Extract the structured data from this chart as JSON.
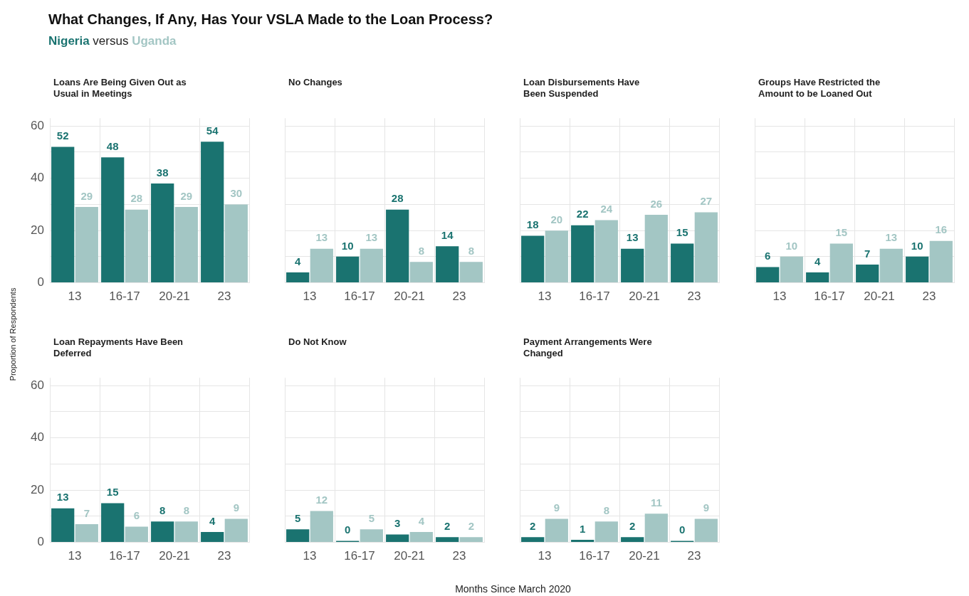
{
  "chart_data": [
    {
      "type": "other",
      "title": "What Changes, If Any, Has Your VSLA Made to the Loan Process?",
      "subtitle": "Nigeria versus Uganda",
      "xlabel": "Months Since March 2020",
      "ylabel": "Proportion of Respondents"
    },
    {
      "type": "bar",
      "title": "Loans Are Being Given Out as Usual in Meetings",
      "categories": [
        "13",
        "16-17",
        "20-21",
        "23"
      ],
      "series": [
        {
          "color": "#1a7370",
          "values": [
            52,
            48,
            38,
            54
          ]
        },
        {
          "color": "#a3c6c4",
          "values": [
            29,
            28,
            29,
            30
          ]
        }
      ],
      "ylim": [
        0,
        63
      ],
      "yticks": [
        0,
        {
          "value": 10,
          "label": null
        },
        20,
        {
          "value": 30,
          "label": null
        },
        40,
        {
          "value": 50,
          "label": null
        },
        60
      ],
      "grid": true,
      "data_labels": true
    },
    {
      "type": "bar",
      "title": "No Changes",
      "categories": [
        "13",
        "16-17",
        "20-21",
        "23"
      ],
      "series": [
        {
          "color": "#1a7370",
          "values": [
            4,
            10,
            28,
            14
          ]
        },
        {
          "color": "#a3c6c4",
          "values": [
            13,
            13,
            8,
            8
          ]
        }
      ],
      "ylim": [
        0,
        63
      ],
      "yticks": [
        0,
        {
          "value": 10,
          "label": null
        },
        20,
        {
          "value": 30,
          "label": null
        },
        40,
        {
          "value": 50,
          "label": null
        },
        60
      ],
      "grid": true,
      "data_labels": true,
      "tick_labels": "x"
    },
    {
      "type": "bar",
      "title": "Loan Disbursements Have Been Suspended",
      "categories": [
        "13",
        "16-17",
        "20-21",
        "23"
      ],
      "series": [
        {
          "color": "#1a7370",
          "values": [
            18,
            22,
            13,
            15
          ]
        },
        {
          "color": "#a3c6c4",
          "values": [
            20,
            24,
            26,
            27
          ]
        }
      ],
      "ylim": [
        0,
        63
      ],
      "yticks": [
        0,
        {
          "value": 10,
          "label": null
        },
        20,
        {
          "value": 30,
          "label": null
        },
        40,
        {
          "value": 50,
          "label": null
        },
        60
      ],
      "grid": true,
      "data_labels": true,
      "tick_labels": "x"
    },
    {
      "type": "bar",
      "title": "Groups Have Restricted the Amount to be Loaned Out",
      "categories": [
        "13",
        "16-17",
        "20-21",
        "23"
      ],
      "series": [
        {
          "color": "#1a7370",
          "values": [
            6,
            4,
            7,
            10
          ]
        },
        {
          "color": "#a3c6c4",
          "values": [
            10,
            15,
            13,
            16
          ]
        }
      ],
      "ylim": [
        0,
        63
      ],
      "yticks": [
        0,
        {
          "value": 10,
          "label": null
        },
        20,
        {
          "value": 30,
          "label": null
        },
        40,
        {
          "value": 50,
          "label": null
        },
        60
      ],
      "grid": true,
      "data_labels": true,
      "tick_labels": "x"
    },
    {
      "type": "bar",
      "title": "Loan Repayments Have Been Deferred",
      "categories": [
        "13",
        "16-17",
        "20-21",
        "23"
      ],
      "series": [
        {
          "color": "#1a7370",
          "values": [
            13,
            15,
            8,
            4
          ]
        },
        {
          "color": "#a3c6c4",
          "values": [
            7,
            6,
            8,
            9
          ]
        }
      ],
      "ylim": [
        0,
        63
      ],
      "yticks": [
        0,
        {
          "value": 10,
          "label": null
        },
        20,
        {
          "value": 30,
          "label": null
        },
        40,
        {
          "value": 50,
          "label": null
        },
        60
      ],
      "grid": true,
      "data_labels": true
    },
    {
      "type": "bar",
      "title": "Do Not Know",
      "categories": [
        "13",
        "16-17",
        "20-21",
        "23"
      ],
      "series": [
        {
          "color": "#1a7370",
          "values": [
            5,
            0,
            3,
            2
          ]
        },
        {
          "color": "#a3c6c4",
          "values": [
            12,
            5,
            4,
            2
          ]
        }
      ],
      "ylim": [
        0,
        63
      ],
      "yticks": [
        0,
        {
          "value": 10,
          "label": null
        },
        20,
        {
          "value": 30,
          "label": null
        },
        40,
        {
          "value": 50,
          "label": null
        },
        60
      ],
      "grid": true,
      "data_labels": true,
      "tick_labels": "x"
    },
    {
      "type": "bar",
      "title": "Payment Arrangements Were Changed",
      "categories": [
        "13",
        "16-17",
        "20-21",
        "23"
      ],
      "series": [
        {
          "color": "#1a7370",
          "values": [
            2,
            1,
            2,
            0
          ]
        },
        {
          "color": "#a3c6c4",
          "values": [
            9,
            8,
            11,
            9
          ]
        }
      ],
      "ylim": [
        0,
        63
      ],
      "yticks": [
        0,
        {
          "value": 10,
          "label": null
        },
        20,
        {
          "value": 30,
          "label": null
        },
        40,
        {
          "value": 50,
          "label": null
        },
        60
      ],
      "grid": true,
      "data_labels": true,
      "tick_labels": "x"
    }
  ]
}
